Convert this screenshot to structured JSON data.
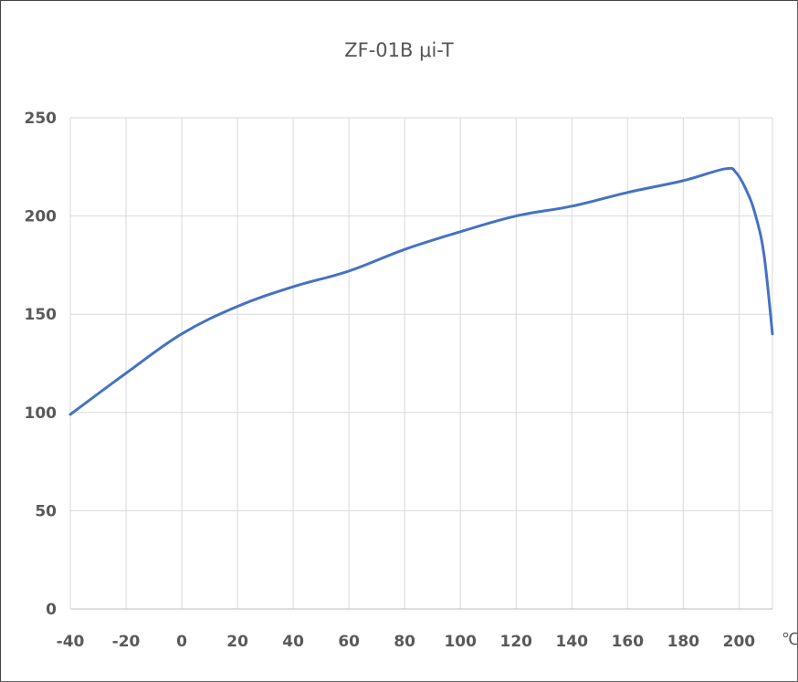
{
  "chart_data": {
    "type": "line",
    "title": "ZF-01B  μi-T",
    "xlabel": "",
    "ylabel": "",
    "x_unit": "℃",
    "xlim": [
      -40,
      212
    ],
    "ylim": [
      0,
      250
    ],
    "x_ticks": [
      -40,
      -20,
      0,
      20,
      40,
      60,
      80,
      100,
      120,
      140,
      160,
      180,
      200
    ],
    "y_ticks": [
      0,
      50,
      100,
      150,
      200,
      250
    ],
    "grid": "on",
    "legend": "none",
    "series": [
      {
        "color": "#4472c4",
        "x": [
          -40,
          -20,
          0,
          20,
          40,
          60,
          80,
          100,
          120,
          140,
          160,
          180,
          195,
          199,
          203,
          206,
          209,
          212
        ],
        "y": [
          99,
          120,
          140,
          154,
          164,
          172,
          183,
          192,
          200,
          205,
          212,
          218,
          224,
          222,
          212,
          200,
          180,
          140
        ]
      }
    ]
  }
}
